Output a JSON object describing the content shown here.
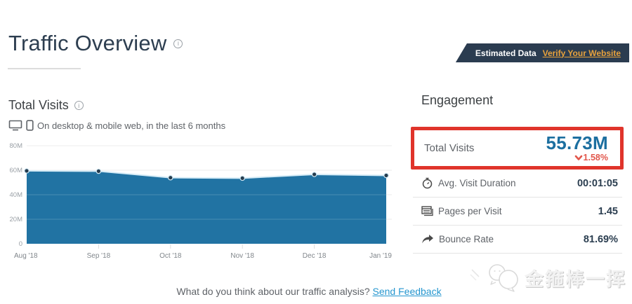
{
  "page": {
    "title": "Traffic Overview"
  },
  "banner": {
    "label": "Estimated Data",
    "link": "Verify Your Website",
    "bg_color": "#2b3c50",
    "link_color": "#e8a23c"
  },
  "left_section": {
    "title": "Total Visits",
    "subtitle": "On desktop & mobile web, in the last 6 months"
  },
  "chart_data": {
    "type": "area",
    "title": "Total Visits",
    "x": [
      "Aug '18",
      "Sep '18",
      "Oct '18",
      "Nov '18",
      "Dec '18",
      "Jan '19"
    ],
    "values": [
      59.5,
      59.2,
      53.9,
      53.5,
      56.6,
      55.73
    ],
    "unit": "M",
    "ylim": [
      0,
      80
    ],
    "yticks": [
      {
        "v": 80,
        "label": "80M"
      },
      {
        "v": 60,
        "label": "60M"
      },
      {
        "v": 40,
        "label": "40M"
      },
      {
        "v": 20,
        "label": "20M"
      },
      {
        "v": 0,
        "label": "0"
      }
    ],
    "grid": true,
    "fill_color": "#2173a3",
    "line_color": "#d6ecf7",
    "dot_color": "#263c4e"
  },
  "engagement": {
    "title": "Engagement",
    "highlight": {
      "label": "Total Visits",
      "value": "55.73M",
      "change": "1.58%",
      "direction": "down",
      "value_color": "#1c6fa0",
      "change_color": "#e2574c",
      "box_color": "#e0342b"
    },
    "rows": [
      {
        "icon": "stopwatch-icon",
        "label": "Avg. Visit Duration",
        "value": "00:01:05"
      },
      {
        "icon": "pages-icon",
        "label": "Pages per Visit",
        "value": "1.45"
      },
      {
        "icon": "bounce-arrow-icon",
        "label": "Bounce Rate",
        "value": "81.69%"
      }
    ]
  },
  "footer": {
    "question": "What do you think about our traffic analysis?",
    "link": "Send Feedback"
  },
  "watermark": {
    "text": "金箍棒一挥"
  }
}
